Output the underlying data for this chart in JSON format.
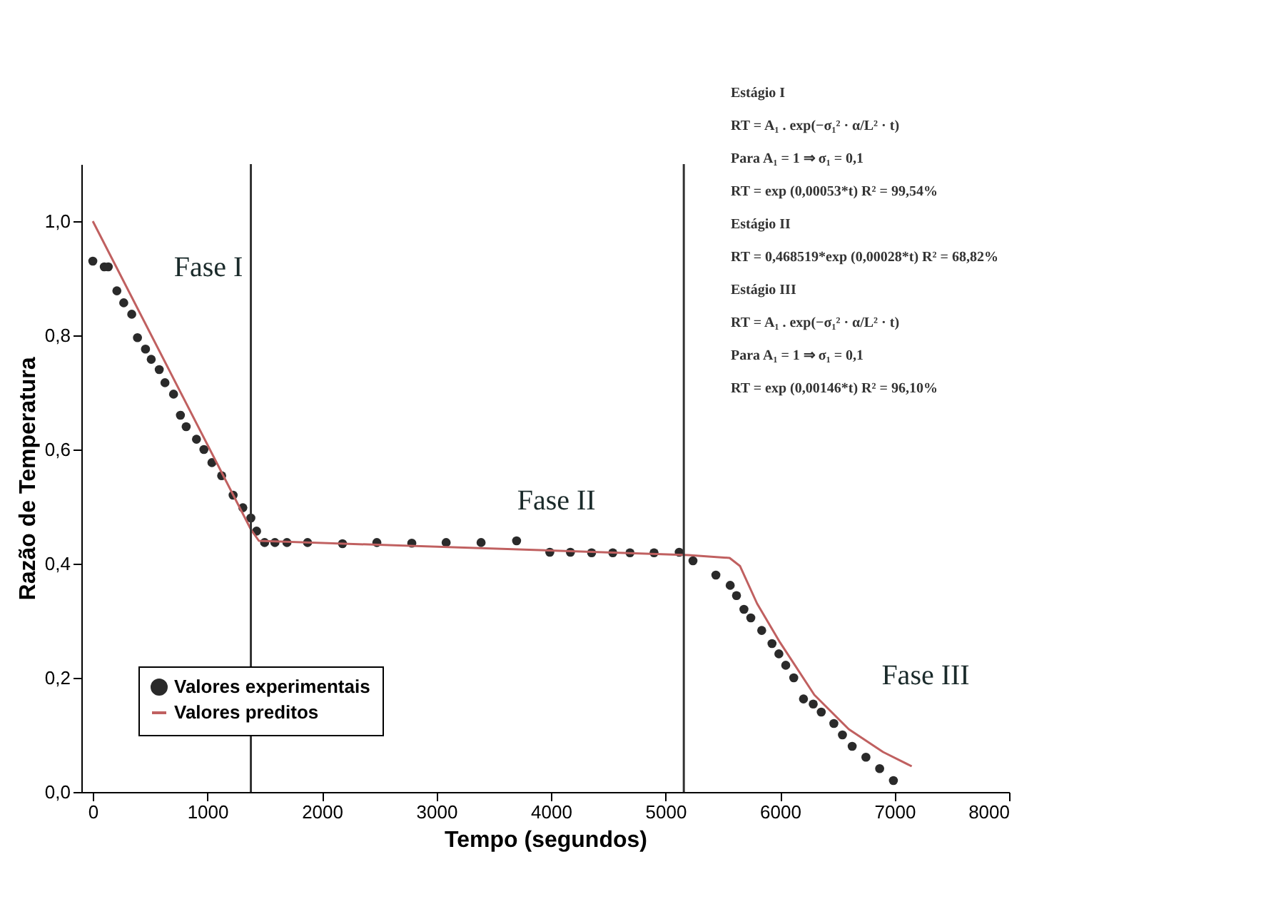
{
  "chart_data": {
    "type": "scatter",
    "xlabel": "Tempo (segundos)",
    "ylabel": "Razão de Temperatura",
    "xlim": [
      -100,
      8000
    ],
    "ylim": [
      0,
      1.1
    ],
    "xticks": [
      0,
      1000,
      2000,
      3000,
      4000,
      5000,
      6000,
      7000,
      8000
    ],
    "yticks": [
      {
        "value": 0,
        "label": "0,0"
      },
      {
        "value": 0.2,
        "label": "0,2"
      },
      {
        "value": 0.4,
        "label": "0,4"
      },
      {
        "value": 0.6,
        "label": "0,6"
      },
      {
        "value": 0.8,
        "label": "0,8"
      },
      {
        "value": 1.0,
        "label": "1,0"
      }
    ],
    "series": [
      {
        "name": "Valores experimentais",
        "type": "scatter",
        "color": "#2a2a2a",
        "marker": "circle",
        "x": [
          0,
          100,
          135,
          210,
          270,
          340,
          390,
          460,
          510,
          580,
          630,
          705,
          765,
          815,
          905,
          970,
          1040,
          1125,
          1225,
          1310,
          1380,
          1430,
          1500,
          1590,
          1695,
          1875,
          2180,
          2480,
          2785,
          3085,
          3390,
          3700,
          3990,
          4170,
          4355,
          4540,
          4690,
          4900,
          5120,
          5240,
          5440,
          5565,
          5620,
          5685,
          5745,
          5840,
          5930,
          5990,
          6050,
          6120,
          6205,
          6290,
          6360,
          6470,
          6545,
          6630,
          6750,
          6870,
          6990
        ],
        "values": [
          0.93,
          0.92,
          0.92,
          0.878,
          0.857,
          0.837,
          0.796,
          0.776,
          0.758,
          0.74,
          0.717,
          0.697,
          0.66,
          0.64,
          0.618,
          0.6,
          0.577,
          0.554,
          0.52,
          0.498,
          0.48,
          0.457,
          0.437,
          0.437,
          0.437,
          0.437,
          0.435,
          0.437,
          0.436,
          0.437,
          0.437,
          0.44,
          0.42,
          0.42,
          0.419,
          0.419,
          0.419,
          0.419,
          0.42,
          0.405,
          0.38,
          0.362,
          0.344,
          0.32,
          0.305,
          0.283,
          0.26,
          0.242,
          0.222,
          0.2,
          0.163,
          0.154,
          0.14,
          0.12,
          0.1,
          0.08,
          0.061,
          0.041,
          0.02
        ]
      },
      {
        "name": "Valores preditos",
        "type": "line",
        "color": "#c06060",
        "x": [
          0,
          1380,
          1450,
          5200,
          5560,
          5650,
          5800,
          6000,
          6300,
          6600,
          6900,
          7150
        ],
        "values": [
          1.0,
          0.46,
          0.44,
          0.415,
          0.41,
          0.396,
          0.33,
          0.262,
          0.17,
          0.11,
          0.07,
          0.045
        ]
      }
    ],
    "ref_lines": [
      {
        "axis": "x",
        "value": 1380,
        "color": "#333333"
      },
      {
        "axis": "x",
        "value": 5160,
        "color": "#333333"
      }
    ],
    "legend": "bottom left",
    "grid": false,
    "annotations": [
      "Fase I",
      "Fase II",
      "Fase III",
      "Estágio I",
      "RT = A₁ . exp(−σ₁² · α/L² · t)",
      "Para A₁ = 1 ⇒ σ₁ = 0,1",
      "RT = exp (0,00053*t)          R² = 99,54%",
      "Estágio II",
      "RT = 0,468519*exp (0,00028*t)     R² = 68,82%",
      "Estágio III",
      "RT = A₁ . exp(−σ₁² · α/L² · t)",
      "Para A₁ = 1 ⇒ σ₁ = 0,1",
      "RT = exp (0,00146*t)          R² = 96,10%"
    ]
  }
}
